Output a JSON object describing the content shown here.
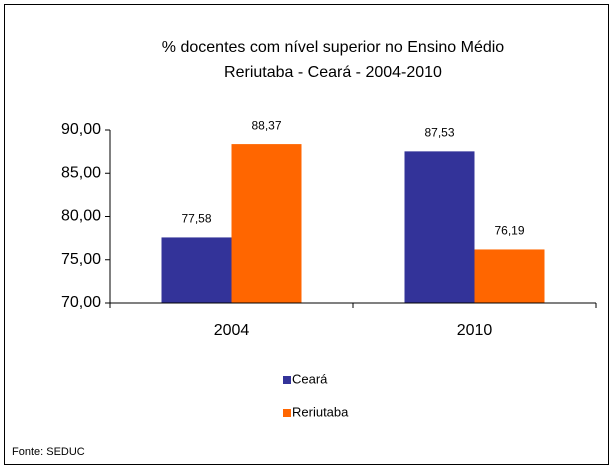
{
  "chart_data": {
    "type": "bar",
    "title": [
      "% docentes com nível superior no Ensino Médio",
      "Reriutaba - Ceará - 2004-2010"
    ],
    "categories": [
      "2004",
      "2010"
    ],
    "series": [
      {
        "name": "Ceará",
        "color": "#333399",
        "values": [
          77.58,
          87.53
        ],
        "value_labels": [
          "77,58",
          "87,53"
        ]
      },
      {
        "name": "Reriutaba",
        "color": "#ff6600",
        "values": [
          88.37,
          76.19
        ],
        "value_labels": [
          "88,37",
          "76,19"
        ]
      }
    ],
    "ylim": [
      70,
      90
    ],
    "yticks": [
      {
        "value": 70,
        "label": "70,00"
      },
      {
        "value": 75,
        "label": "75,00"
      },
      {
        "value": 80,
        "label": "80,00"
      },
      {
        "value": 85,
        "label": "85,00"
      },
      {
        "value": 90,
        "label": "90,00"
      }
    ],
    "grid": false,
    "legend": "bottom",
    "source": "Fonte: SEDUC"
  }
}
